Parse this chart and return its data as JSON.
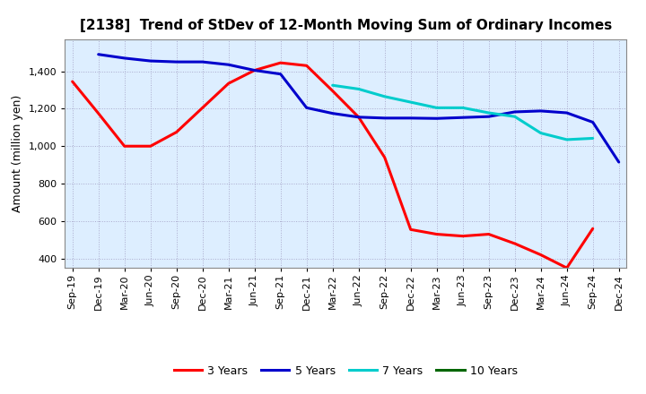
{
  "title": "[2138]  Trend of StDev of 12-Month Moving Sum of Ordinary Incomes",
  "ylabel": "Amount (million yen)",
  "background_color": "#ffffff",
  "plot_background": "#ddeeff",
  "grid_color": "#aaaacc",
  "x_labels": [
    "Sep-19",
    "Dec-19",
    "Mar-20",
    "Jun-20",
    "Sep-20",
    "Dec-20",
    "Mar-21",
    "Jun-21",
    "Sep-21",
    "Dec-21",
    "Mar-22",
    "Jun-22",
    "Sep-22",
    "Dec-22",
    "Mar-23",
    "Jun-23",
    "Sep-23",
    "Dec-23",
    "Mar-24",
    "Jun-24",
    "Sep-24",
    "Dec-24"
  ],
  "ylim": [
    350,
    1570
  ],
  "yticks": [
    400,
    600,
    800,
    1000,
    1200,
    1400
  ],
  "series": {
    "3 Years": {
      "color": "#ff0000",
      "data": [
        1345,
        1175,
        1000,
        1000,
        1075,
        1205,
        1335,
        1405,
        1445,
        1430,
        1295,
        1155,
        940,
        555,
        530,
        520,
        530,
        480,
        420,
        350,
        560,
        null
      ]
    },
    "5 Years": {
      "color": "#0000cc",
      "data": [
        null,
        1490,
        1470,
        1455,
        1450,
        1450,
        1435,
        1405,
        1385,
        1205,
        1175,
        1155,
        1150,
        1150,
        1148,
        1153,
        1158,
        1183,
        1188,
        1178,
        1128,
        915
      ]
    },
    "7 Years": {
      "color": "#00cccc",
      "data": [
        null,
        null,
        null,
        null,
        null,
        null,
        null,
        null,
        null,
        null,
        1325,
        1305,
        1265,
        1235,
        1205,
        1205,
        1178,
        1158,
        1070,
        1035,
        1042,
        null
      ]
    },
    "10 Years": {
      "color": "#006600",
      "data": [
        null,
        null,
        null,
        null,
        null,
        null,
        null,
        null,
        null,
        null,
        null,
        null,
        null,
        null,
        null,
        null,
        null,
        null,
        null,
        null,
        null,
        null
      ]
    }
  },
  "legend_labels": [
    "3 Years",
    "5 Years",
    "7 Years",
    "10 Years"
  ],
  "legend_colors": [
    "#ff0000",
    "#0000cc",
    "#00cccc",
    "#006600"
  ],
  "title_fontsize": 11,
  "ylabel_fontsize": 9,
  "tick_fontsize": 8,
  "linewidth": 2.2
}
